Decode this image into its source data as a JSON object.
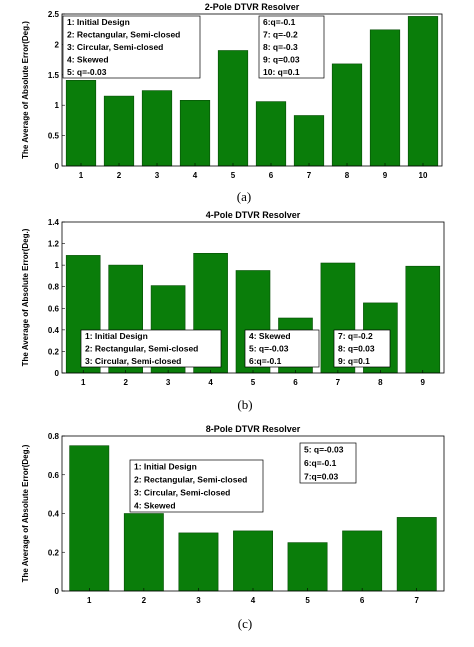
{
  "chart_data": [
    {
      "type": "bar",
      "title": "2-Pole DTVR Resolver",
      "caption": "(a)",
      "ylabel": "The Average of Absolute Error(Deg.)",
      "categories": [
        "1",
        "2",
        "3",
        "4",
        "5",
        "6",
        "7",
        "8",
        "9",
        "10"
      ],
      "values": [
        1.41,
        1.15,
        1.24,
        1.08,
        1.9,
        1.06,
        0.83,
        1.68,
        2.24,
        2.46
      ],
      "ylim": [
        0,
        2.5
      ],
      "yticks": [
        "0",
        "0.5",
        "1",
        "1.5",
        "2",
        "2.5"
      ],
      "legends": [
        [
          "1: Initial Design",
          "2: Rectangular, Semi-closed",
          "3: Circular, Semi-closed",
          "4: Skewed",
          "5: q=-0.03"
        ],
        [
          "6:q=-0.1",
          "7: q=-0.2",
          "8: q=-0.3",
          "9: q=0.03",
          "10: q=0.1"
        ]
      ]
    },
    {
      "type": "bar",
      "title": "4-Pole DTVR Resolver",
      "caption": "(b)",
      "ylabel": "The Average of Absolute Error(Deg.)",
      "categories": [
        "1",
        "2",
        "3",
        "4",
        "5",
        "6",
        "7",
        "8",
        "9"
      ],
      "values": [
        1.09,
        1.0,
        0.81,
        1.11,
        0.95,
        0.51,
        1.02,
        0.65,
        0.99
      ],
      "ylim": [
        0,
        1.4
      ],
      "yticks": [
        "0",
        "0.2",
        "0.4",
        "0.6",
        "0.8",
        "1",
        "1.2",
        "1.4"
      ],
      "legends": [
        [
          "1: Initial Design",
          "2: Rectangular, Semi-closed",
          "3: Circular, Semi-closed"
        ],
        [
          "4: Skewed",
          "5: q=-0.03",
          "6:q=-0.1"
        ],
        [
          "7: q=-0.2",
          "8: q=0.03",
          "9: q=0.1"
        ]
      ]
    },
    {
      "type": "bar",
      "title": "8-Pole DTVR Resolver",
      "caption": "(c)",
      "ylabel": "The Average of Absolute Error(Deg.)",
      "categories": [
        "1",
        "2",
        "3",
        "4",
        "5",
        "6",
        "7"
      ],
      "values": [
        0.75,
        0.4,
        0.3,
        0.31,
        0.25,
        0.31,
        0.38
      ],
      "ylim": [
        0,
        0.8
      ],
      "yticks": [
        "0",
        "0.2",
        "0.4",
        "0.6",
        "0.8"
      ],
      "legends": [
        [
          "1: Initial Design",
          "2: Rectangular, Semi-closed",
          "3: Circular, Semi-closed",
          "4: Skewed"
        ],
        [
          "5: q=-0.03",
          "6:q=-0.1",
          "7:q=0.03"
        ]
      ]
    }
  ]
}
